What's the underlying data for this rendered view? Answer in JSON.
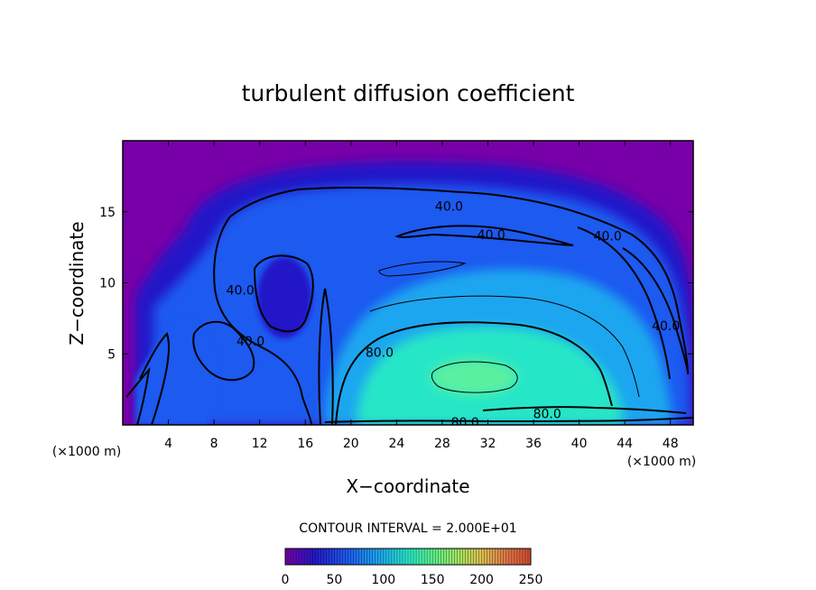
{
  "chart_data": {
    "type": "heatmap",
    "title": "turbulent diffusion coefficient",
    "xlabel": "X−coordinate",
    "ylabel": "Z−coordinate",
    "x_unit": "(×1000 m)",
    "x_unit_right": "(×1000 m)",
    "xlim": [
      0,
      50
    ],
    "ylim": [
      0,
      20
    ],
    "x_ticks": [
      4,
      8,
      12,
      16,
      20,
      24,
      28,
      32,
      36,
      40,
      44,
      48
    ],
    "y_ticks": [
      5,
      10,
      15
    ],
    "contour_interval_text": "CONTOUR INTERVAL = 2.000E+01",
    "contour_labels": [
      {
        "text": "40.0",
        "x": 28.6,
        "z": 15.4
      },
      {
        "text": "40.0",
        "x": 32.3,
        "z": 13.4
      },
      {
        "text": "40.0",
        "x": 42.5,
        "z": 13.3
      },
      {
        "text": "40.0",
        "x": 10.3,
        "z": 9.5
      },
      {
        "text": "40.0",
        "x": 11.2,
        "z": 5.9
      },
      {
        "text": "40.0",
        "x": 47.6,
        "z": 7.0
      },
      {
        "text": "80.0",
        "x": 22.5,
        "z": 5.1
      },
      {
        "text": "80.0",
        "x": 37.2,
        "z": 0.8
      },
      {
        "text": "80.0",
        "x": 30.0,
        "z": 0.2
      }
    ],
    "colorbar": {
      "min": 0,
      "max": 250,
      "tick_values": [
        0,
        50,
        100,
        150,
        200,
        250
      ],
      "tick_labels": [
        "0",
        "50",
        "100",
        "150",
        "200",
        "250"
      ],
      "colors": [
        "#7800a8",
        "#3010d0",
        "#1840e8",
        "#1c86f0",
        "#22cde6",
        "#3cf0b0",
        "#64f078",
        "#b4e65a",
        "#e6a046",
        "#d04a32"
      ]
    },
    "field_colors": {
      "background": "#7800a8",
      "outer_shell": "#2418c8",
      "mid_shell": "#1c5af0",
      "inner": "#1ca6f0",
      "core": "#28e6c8",
      "max": "#5af0a0"
    }
  }
}
